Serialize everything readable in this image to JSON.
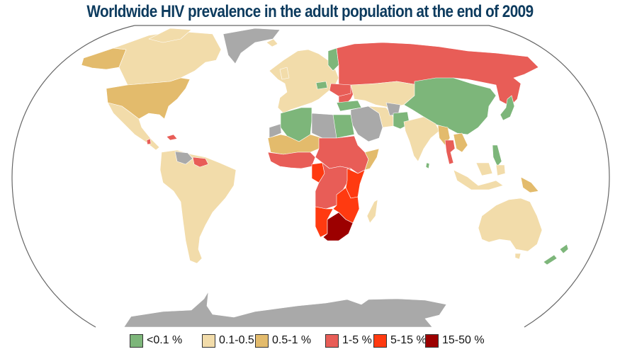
{
  "title": "Worldwide HIV prevalence in the adult population at the end of 2009",
  "colors": {
    "no_data": "#a9a9a9",
    "border": "#666666",
    "country_line": "#ffffff"
  },
  "legend": [
    {
      "label": "<0.1 %",
      "color": "#7db67a",
      "category": "lt-0-1"
    },
    {
      "label": "0.1-0.5 %",
      "color": "#f2dcaa",
      "category": "0-1-to-0-5"
    },
    {
      "label": "0.5-1 %",
      "color": "#e3bb6c",
      "category": "0-5-to-1"
    },
    {
      "label": "1-5 %",
      "color": "#e85d57",
      "category": "1-to-5"
    },
    {
      "label": "5-15 %",
      "color": "#ff3a10",
      "category": "5-to-15"
    },
    {
      "label": "15-50 %",
      "color": "#9c0000",
      "category": "15-to-50"
    }
  ],
  "regions": [
    {
      "name": "alaska",
      "level": 2
    },
    {
      "name": "canada",
      "level": 1
    },
    {
      "name": "united-states",
      "level": 2
    },
    {
      "name": "greenland",
      "level": -1
    },
    {
      "name": "mexico-central-america",
      "level": 1
    },
    {
      "name": "caribbean-haiti",
      "level": 3
    },
    {
      "name": "south-america",
      "level": 1
    },
    {
      "name": "venezuela",
      "level": -1
    },
    {
      "name": "guyana-suriname",
      "level": 3
    },
    {
      "name": "western-europe",
      "level": 1
    },
    {
      "name": "finland-baltics",
      "level": 0
    },
    {
      "name": "russia",
      "level": 3
    },
    {
      "name": "ukraine",
      "level": 3
    },
    {
      "name": "kazakhstan-central-asia",
      "level": 1
    },
    {
      "name": "china-mongolia",
      "level": 0
    },
    {
      "name": "japan",
      "level": 0
    },
    {
      "name": "turkey",
      "level": 0
    },
    {
      "name": "middle-east",
      "level": -1
    },
    {
      "name": "iran",
      "level": 1
    },
    {
      "name": "afghanistan",
      "level": -1
    },
    {
      "name": "pakistan",
      "level": 0
    },
    {
      "name": "india",
      "level": 1
    },
    {
      "name": "sri-lanka",
      "level": 0
    },
    {
      "name": "myanmar",
      "level": 2
    },
    {
      "name": "thailand",
      "level": 3
    },
    {
      "name": "indochina",
      "level": 2
    },
    {
      "name": "philippines",
      "level": 0
    },
    {
      "name": "indonesia",
      "level": 1
    },
    {
      "name": "papua-new-guinea",
      "level": 2
    },
    {
      "name": "australia",
      "level": 1
    },
    {
      "name": "new-zealand",
      "level": 0
    },
    {
      "name": "algeria-tunisia",
      "level": 0
    },
    {
      "name": "libya",
      "level": -1
    },
    {
      "name": "egypt",
      "level": 0
    },
    {
      "name": "western-sahara",
      "level": -1
    },
    {
      "name": "sahel",
      "level": 2
    },
    {
      "name": "west-africa",
      "level": 3
    },
    {
      "name": "central-east-africa",
      "level": 3
    },
    {
      "name": "somalia-horn",
      "level": 2
    },
    {
      "name": "congo-angola",
      "level": 3
    },
    {
      "name": "gabon-cameroon",
      "level": 4
    },
    {
      "name": "east-africa-kenya-tanzania",
      "level": 4
    },
    {
      "name": "southern-africa-mozambique-zambia",
      "level": 4
    },
    {
      "name": "namibia",
      "level": 4
    },
    {
      "name": "south-africa-botswana",
      "level": 5
    },
    {
      "name": "madagascar",
      "level": 1
    },
    {
      "name": "antarctica",
      "level": -1
    }
  ]
}
